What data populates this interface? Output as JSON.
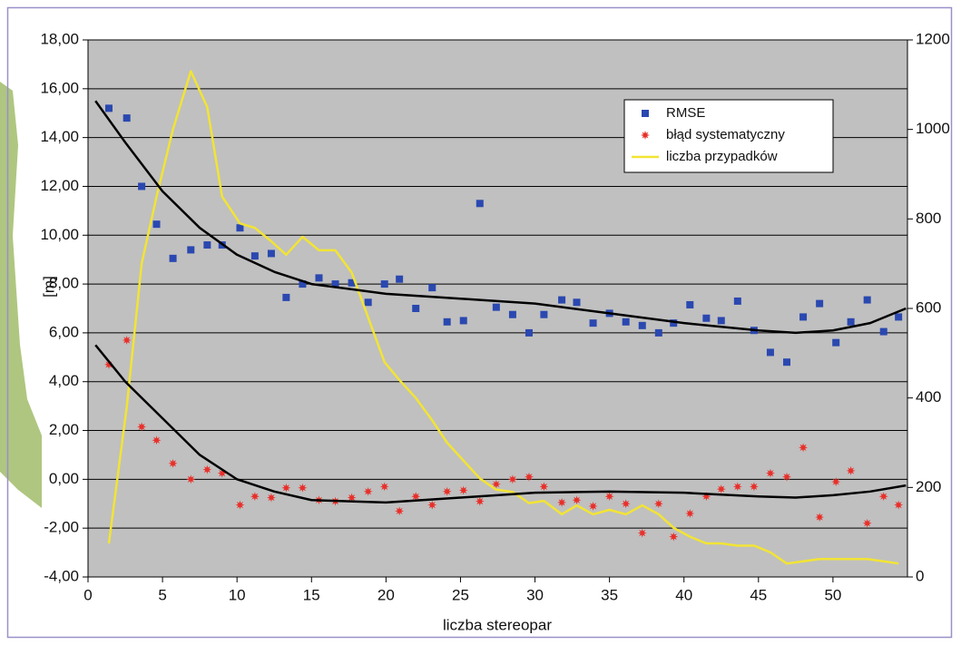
{
  "chart_data": {
    "type": "scatter",
    "xlabel": "liczba stereopar",
    "ylabel": "[m]",
    "xlim": [
      0,
      55
    ],
    "xticks": [
      0,
      5,
      10,
      15,
      20,
      25,
      30,
      35,
      40,
      45,
      50
    ],
    "ylim": [
      -4,
      18
    ],
    "yticks": [
      {
        "value": -4,
        "label": "-4,00"
      },
      {
        "value": -2,
        "label": "-2,00"
      },
      {
        "value": 0,
        "label": "0,00"
      },
      {
        "value": 2,
        "label": "2,00"
      },
      {
        "value": 4,
        "label": "4,00"
      },
      {
        "value": 6,
        "label": "6,00"
      },
      {
        "value": 8,
        "label": "8,00"
      },
      {
        "value": 10,
        "label": "10,00"
      },
      {
        "value": 12,
        "label": "12,00"
      },
      {
        "value": 14,
        "label": "14,00"
      },
      {
        "value": 16,
        "label": "16,00"
      },
      {
        "value": 18,
        "label": "18,00"
      }
    ],
    "y2lim": [
      0,
      1200
    ],
    "y2ticks": [
      0,
      200,
      400,
      600,
      800,
      1000,
      1200
    ],
    "grid": true,
    "legend": "upper right",
    "series": [
      {
        "name": "RMSE",
        "type": "scatter",
        "marker": "square",
        "color": "#2a48b0",
        "x": [
          1.4,
          2.6,
          3.6,
          4.6,
          5.7,
          6.9,
          8.0,
          9.0,
          10.2,
          11.2,
          12.3,
          13.3,
          14.4,
          15.5,
          16.6,
          17.7,
          18.8,
          19.9,
          20.9,
          22.0,
          23.1,
          24.1,
          25.2,
          26.3,
          27.4,
          28.5,
          29.6,
          30.6,
          31.8,
          32.8,
          33.9,
          35.0,
          36.1,
          37.2,
          38.3,
          39.3,
          40.4,
          41.5,
          42.5,
          43.6,
          44.7,
          45.8,
          46.9,
          48.0,
          49.1,
          50.2,
          51.2,
          52.3,
          53.4,
          54.4
        ],
        "values": [
          15.2,
          14.8,
          12.0,
          10.45,
          9.05,
          9.4,
          9.6,
          9.6,
          10.3,
          9.15,
          9.25,
          7.45,
          8.0,
          8.25,
          8.0,
          8.05,
          7.25,
          8.0,
          8.2,
          7.0,
          7.85,
          6.45,
          6.5,
          11.3,
          7.05,
          6.75,
          6.0,
          6.75,
          7.35,
          7.25,
          6.4,
          6.8,
          6.45,
          6.3,
          6.0,
          6.4,
          7.15,
          6.6,
          6.5,
          7.3,
          6.1,
          5.2,
          4.8,
          6.65,
          7.2,
          5.6,
          6.45,
          7.35,
          6.05,
          6.65
        ]
      },
      {
        "name": "błąd systematyczny",
        "type": "scatter",
        "marker": "star",
        "color": "#e8302a",
        "x": [
          1.4,
          2.6,
          3.6,
          4.6,
          5.7,
          6.9,
          8.0,
          9.0,
          10.2,
          11.2,
          12.3,
          13.3,
          14.4,
          15.5,
          16.6,
          17.7,
          18.8,
          19.9,
          20.9,
          22.0,
          23.1,
          24.1,
          25.2,
          26.3,
          27.4,
          28.5,
          29.6,
          30.6,
          31.8,
          32.8,
          33.9,
          35.0,
          36.1,
          37.2,
          38.3,
          39.3,
          40.4,
          41.5,
          42.5,
          43.6,
          44.7,
          45.8,
          46.9,
          48.0,
          49.1,
          50.2,
          51.2,
          52.3,
          53.4,
          54.4
        ],
        "values": [
          4.7,
          5.7,
          2.15,
          1.6,
          0.65,
          0.0,
          0.4,
          0.25,
          -1.05,
          -0.7,
          -0.75,
          -0.35,
          -0.35,
          -0.85,
          -0.9,
          -0.75,
          -0.5,
          -0.3,
          -1.3,
          -0.7,
          -1.05,
          -0.5,
          -0.45,
          -0.9,
          -0.2,
          0.0,
          0.1,
          -0.3,
          -0.95,
          -0.85,
          -1.1,
          -0.7,
          -1.0,
          -2.2,
          -1.0,
          -2.35,
          -1.4,
          -0.7,
          -0.4,
          -0.3,
          -0.3,
          0.25,
          0.1,
          1.3,
          -1.55,
          -0.1,
          0.35,
          -1.8,
          -0.7,
          -1.05
        ]
      },
      {
        "name": "liczba przypadków",
        "type": "line",
        "axis": "y2",
        "color": "#f2e434",
        "x": [
          1.4,
          2.6,
          3.6,
          4.6,
          5.7,
          6.9,
          8.0,
          9.0,
          10.2,
          11.2,
          12.3,
          13.3,
          14.4,
          15.5,
          16.6,
          17.7,
          18.8,
          19.9,
          20.9,
          22.0,
          23.1,
          24.1,
          25.2,
          26.3,
          27.4,
          28.5,
          29.6,
          30.6,
          31.8,
          32.8,
          33.9,
          35.0,
          36.1,
          37.2,
          38.3,
          39.3,
          40.4,
          41.5,
          42.5,
          43.6,
          44.7,
          45.8,
          46.9,
          48.0,
          49.1,
          50.2,
          51.2,
          52.3,
          53.4,
          54.4
        ],
        "values": [
          75,
          380,
          700,
          850,
          1000,
          1130,
          1050,
          850,
          790,
          780,
          750,
          720,
          760,
          730,
          730,
          680,
          580,
          480,
          440,
          400,
          350,
          300,
          260,
          220,
          195,
          190,
          165,
          170,
          140,
          160,
          140,
          150,
          140,
          160,
          140,
          110,
          90,
          75,
          75,
          70,
          70,
          55,
          30,
          35,
          40,
          40,
          40,
          40,
          35,
          30
        ]
      }
    ],
    "trendlines": [
      {
        "color": "#000000",
        "x": [
          0.5,
          2.5,
          5,
          7.5,
          10,
          12.5,
          15,
          20,
          25,
          30,
          35,
          40,
          45,
          47.5,
          50,
          52.5,
          54.9
        ],
        "values": [
          15.5,
          13.8,
          11.8,
          10.3,
          9.2,
          8.5,
          8.0,
          7.6,
          7.4,
          7.2,
          6.8,
          6.4,
          6.1,
          6.0,
          6.1,
          6.4,
          7.0
        ]
      },
      {
        "color": "#000000",
        "x": [
          0.5,
          2.5,
          5,
          7.5,
          10,
          12.5,
          15,
          20,
          25,
          30,
          35,
          40,
          45,
          47.5,
          50,
          52.5,
          54.9
        ],
        "values": [
          5.5,
          4.0,
          2.5,
          1.0,
          0.0,
          -0.5,
          -0.85,
          -0.95,
          -0.75,
          -0.55,
          -0.5,
          -0.55,
          -0.7,
          -0.75,
          -0.65,
          -0.5,
          -0.25
        ]
      }
    ]
  }
}
